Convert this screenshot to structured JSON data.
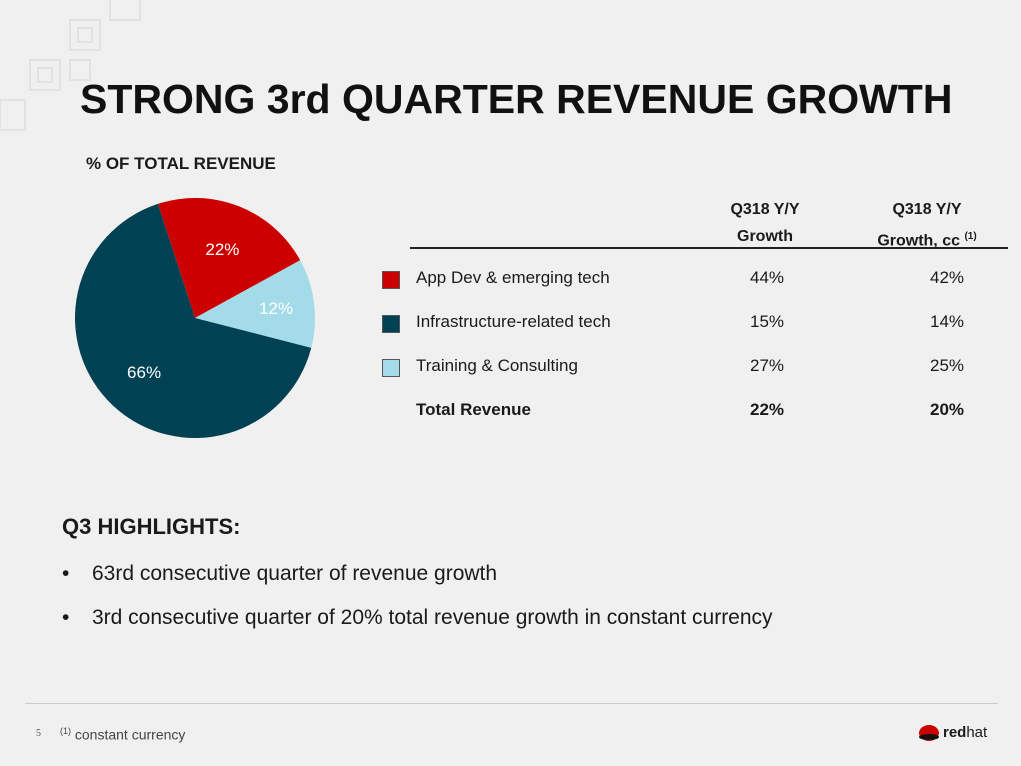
{
  "title": "STRONG 3rd QUARTER REVENUE GROWTH",
  "chart_data": {
    "type": "pie",
    "title": "% OF TOTAL REVENUE",
    "slices": [
      {
        "label": "App Dev & emerging tech",
        "value": 22,
        "display": "22%",
        "color": "#cc0000"
      },
      {
        "label": "Training & Consulting",
        "value": 12,
        "display": "12%",
        "color": "#a3dbe8"
      },
      {
        "label": "Infrastructure-related tech",
        "value": 66,
        "display": "66%",
        "color": "#004153"
      }
    ]
  },
  "table": {
    "headers": [
      [
        "Q318 Y/Y",
        "Growth"
      ],
      [
        "Q318 Y/Y",
        "Growth, cc",
        "(1)"
      ]
    ],
    "rows": [
      {
        "label": "App Dev & emerging tech",
        "yy": "44%",
        "cc": "42%",
        "color": "#cc0000"
      },
      {
        "label": "Infrastructure-related tech",
        "yy": "15%",
        "cc": "14%",
        "color": "#004153"
      },
      {
        "label": "Training & Consulting",
        "yy": "27%",
        "cc": "25%",
        "color": "#a3dbe8"
      },
      {
        "label": "Total Revenue",
        "yy": "22%",
        "cc": "20%"
      }
    ]
  },
  "highlights": {
    "heading": "Q3 HIGHLIGHTS:",
    "bullets": [
      "63rd consecutive quarter of revenue growth",
      "3rd consecutive quarter of 20% total revenue growth in constant currency"
    ]
  },
  "footer": {
    "page": "5",
    "footnote_mark": "(1)",
    "footnote": "constant currency",
    "logo": "redhat"
  }
}
